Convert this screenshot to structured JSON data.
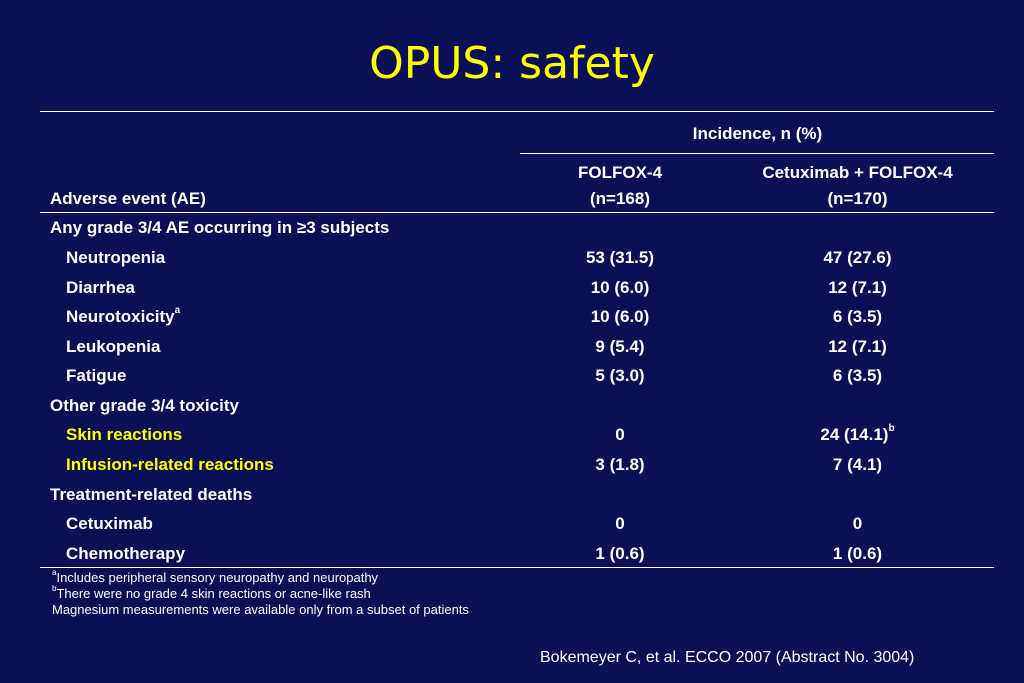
{
  "title": "OPUS: safety",
  "table": {
    "group_header": "Incidence, n (%)",
    "col0_header": "Adverse event (AE)",
    "col1_header": "FOLFOX-4",
    "col1_sub": "(n=168)",
    "col2_header": "Cetuximab + FOLFOX-4",
    "col2_sub": "(n=170)",
    "rows": [
      {
        "label": "Any grade 3/4 AE occurring in ≥3 subjects",
        "v1": "",
        "v2": ""
      },
      {
        "label": "Neutropenia",
        "v1": "53 (31.5)",
        "v2": "47 (27.6)"
      },
      {
        "label": "Diarrhea",
        "v1": "10 (6.0)",
        "v2": "12 (7.1)"
      },
      {
        "label": "Neurotoxicity",
        "label_sup": "a",
        "v1": "10 (6.0)",
        "v2": "6 (3.5)"
      },
      {
        "label": "Leukopenia",
        "v1": "9 (5.4)",
        "v2": "12 (7.1)"
      },
      {
        "label": "Fatigue",
        "v1": "5 (3.0)",
        "v2": "6 (3.5)"
      },
      {
        "label": "Other grade 3/4 toxicity",
        "v1": "",
        "v2": ""
      },
      {
        "label": "Skin reactions",
        "v1": "0",
        "v2": "24 (14.1)",
        "v2_sup": "b"
      },
      {
        "label": "Infusion-related reactions",
        "v1": "3 (1.8)",
        "v2": "7 (4.1)"
      },
      {
        "label": "Treatment-related deaths",
        "v1": "",
        "v2": ""
      },
      {
        "label": "Cetuximab",
        "v1": "0",
        "v2": "0"
      },
      {
        "label": "Chemotherapy",
        "v1": "1 (0.6)",
        "v2": "1 (0.6)"
      }
    ]
  },
  "footnotes": [
    {
      "mark": "a",
      "text": "Includes peripheral sensory neuropathy and neuropathy"
    },
    {
      "mark": "b",
      "text": "There were no grade 4 skin reactions or acne-like rash"
    },
    {
      "mark": "",
      "text": "Magnesium measurements were available only from a subset of patients"
    }
  ],
  "citation": "Bokemeyer C, et al. ECCO 2007 (Abstract No. 3004)",
  "colors": {
    "background": "#0b0f55",
    "title": "#ffff00",
    "highlight": "#ffff00",
    "text": "#ffffff"
  }
}
